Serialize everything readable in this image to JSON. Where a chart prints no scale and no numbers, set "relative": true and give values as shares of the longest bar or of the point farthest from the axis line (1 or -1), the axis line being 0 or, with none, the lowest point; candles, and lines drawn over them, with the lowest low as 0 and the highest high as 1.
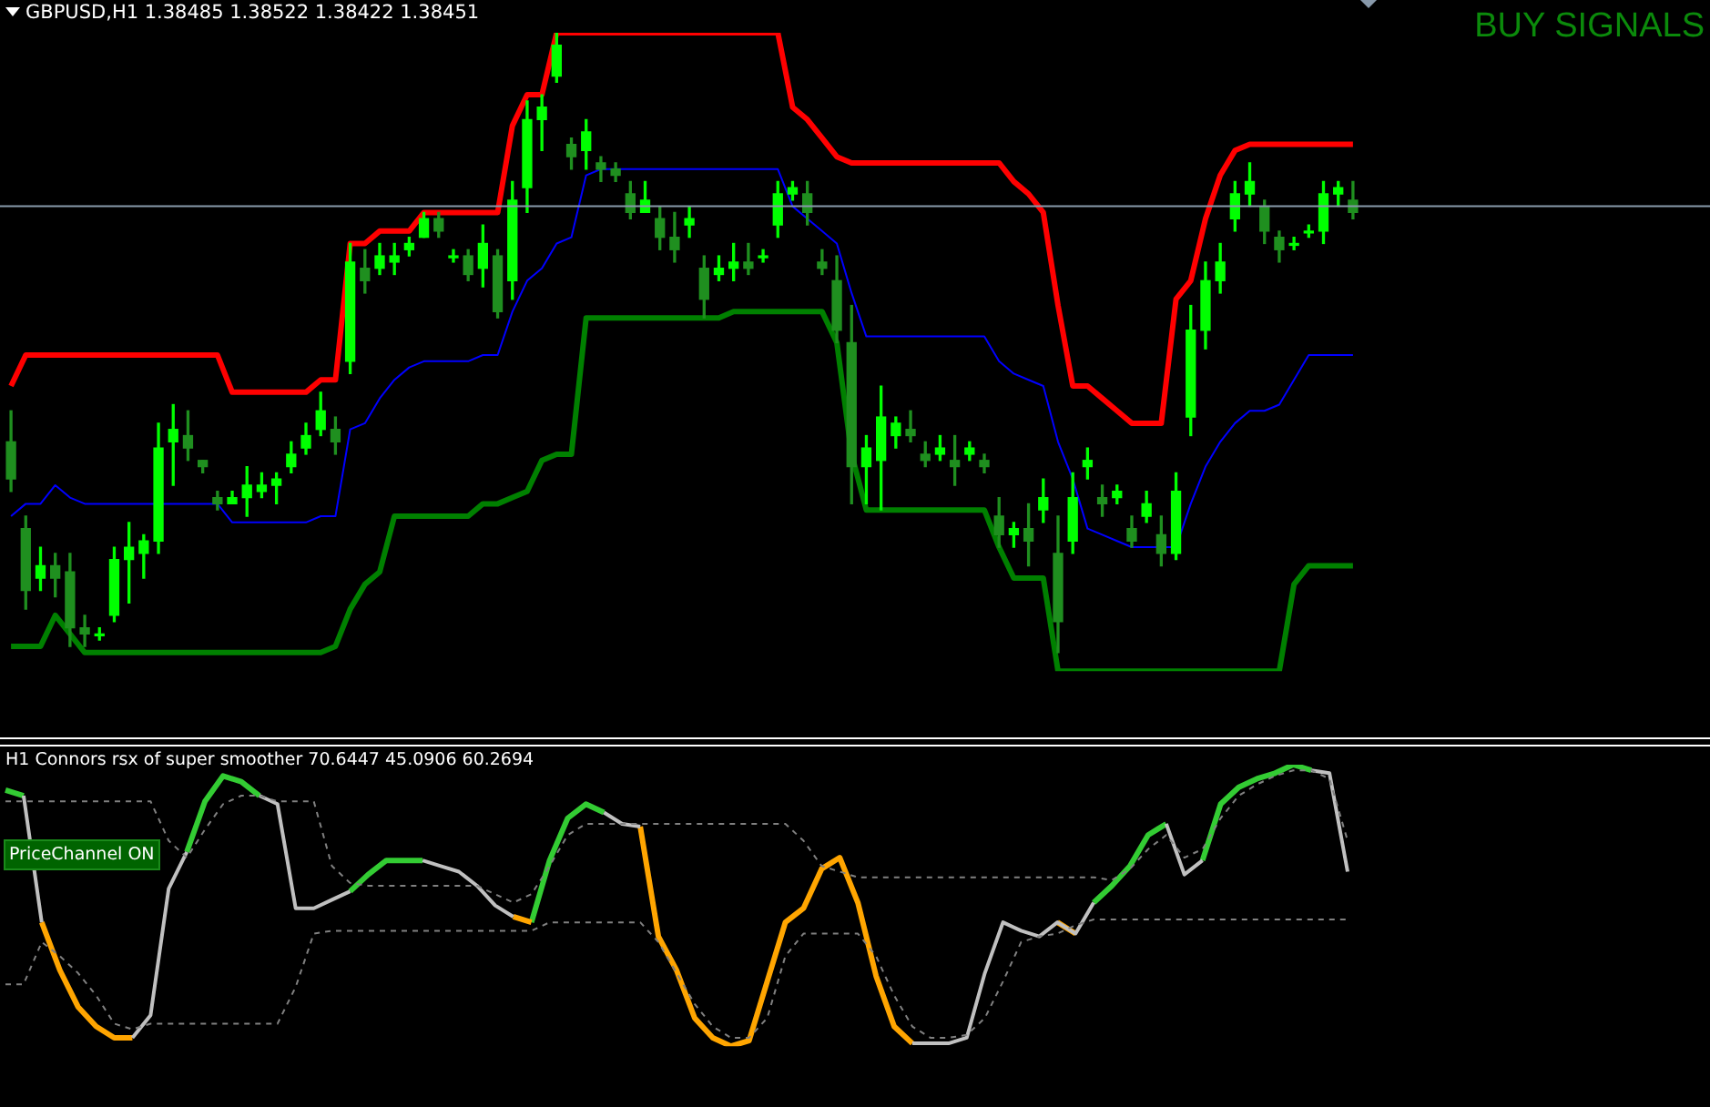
{
  "chart_data": [
    {
      "type": "candlestick",
      "title": "GBPUSD,H1 1.38485 1.38522 1.38422 1.38451",
      "annotations": [
        "BUY SIGNALS"
      ],
      "relative": true,
      "marker": "none",
      "colors": [
        "#1f8f1f",
        "#1f8f1f",
        "#00ff00",
        "#1f8f1f",
        "#1f8f1f",
        "#1f8f1f",
        "#00ff00",
        "#00ff00",
        "#00ff00",
        "#00ff00",
        "#00ff00",
        "#00ff00",
        "#1f8f1f",
        "#1f8f1f",
        "#1f8f1f",
        "#00ff00",
        "#00ff00",
        "#00ff00",
        "#00ff00",
        "#00ff00",
        "#00ff00",
        "#00ff00",
        "#1f8f1f",
        "#00ff00",
        "#1f8f1f",
        "#00ff00",
        "#00ff00",
        "#00ff00",
        "#00ff00",
        "#1f8f1f",
        "#00ff00",
        "#1f8f1f",
        "#00ff00",
        "#1f8f1f",
        "#00ff00",
        "#00ff00",
        "#00ff00",
        "#00ff00",
        "#1f8f1f",
        "#00ff00",
        "#1f8f1f",
        "#1f8f1f",
        "#1f8f1f",
        "#00ff00",
        "#1f8f1f",
        "#1f8f1f",
        "#00ff00",
        "#1f8f1f",
        "#00ff00",
        "#00ff00",
        "#1f8f1f",
        "#00ff00",
        "#00ff00",
        "#00ff00",
        "#1f8f1f",
        "#1f8f1f",
        "#1f8f1f",
        "#1f8f1f",
        "#00ff00",
        "#00ff00",
        "#00ff00",
        "#1f8f1f",
        "#1f8f1f",
        "#00ff00",
        "#1f8f1f",
        "#00ff00",
        "#1f8f1f",
        "#1f8f1f",
        "#00ff00",
        "#1f8f1f",
        "#00ff00",
        "#1f8f1f",
        "#00ff00",
        "#00ff00",
        "#1f8f1f",
        "#00ff00",
        "#1f8f1f",
        "#00ff00",
        "#1f8f1f",
        "#00ff00",
        "#00ff00",
        "#00ff00",
        "#00ff00",
        "#00ff00",
        "#00ff00",
        "#1f8f1f",
        "#1f8f1f",
        "#00ff00",
        "#00ff00",
        "#00ff00",
        "#00ff00",
        "#1f8f1f"
      ],
      "categories": [
        null,
        null,
        null,
        null,
        null,
        null,
        null,
        null,
        null,
        null,
        null,
        null,
        null,
        null,
        null,
        null,
        null,
        null,
        null,
        null,
        null,
        null,
        null,
        null,
        null,
        null,
        null,
        null,
        null,
        null,
        null,
        null,
        null,
        null,
        null,
        null,
        null,
        null,
        null,
        null,
        null,
        null,
        null,
        null,
        null,
        null,
        null,
        null,
        null,
        null,
        null,
        null,
        null,
        null,
        null,
        null,
        null,
        null,
        null,
        null,
        null,
        null,
        null,
        null,
        null,
        null,
        null,
        null,
        null,
        null,
        null,
        null,
        null,
        null,
        null,
        null,
        null,
        null,
        null,
        null,
        null,
        null,
        null,
        null,
        null,
        null,
        null,
        null,
        null,
        null,
        null,
        null
      ],
      "ohlc": [
        [
          0.34,
          0.39,
          0.26,
          0.28
        ],
        [
          0.2,
          0.22,
          0.07,
          0.1
        ],
        [
          0.12,
          0.17,
          0.1,
          0.14
        ],
        [
          0.14,
          0.16,
          0.09,
          0.12
        ],
        [
          0.13,
          0.16,
          0.01,
          0.04
        ],
        [
          0.04,
          0.06,
          0.01,
          0.03
        ],
        [
          0.03,
          0.04,
          0.02,
          0.03
        ],
        [
          0.06,
          0.17,
          0.05,
          0.15
        ],
        [
          0.15,
          0.21,
          0.08,
          0.17
        ],
        [
          0.16,
          0.19,
          0.12,
          0.18
        ],
        [
          0.18,
          0.37,
          0.16,
          0.33
        ],
        [
          0.34,
          0.4,
          0.27,
          0.36
        ],
        [
          0.35,
          0.39,
          0.31,
          0.33
        ],
        [
          0.31,
          0.31,
          0.29,
          0.3
        ],
        [
          0.25,
          0.26,
          0.23,
          0.24
        ],
        [
          0.24,
          0.26,
          0.24,
          0.25
        ],
        [
          0.25,
          0.3,
          0.22,
          0.27
        ],
        [
          0.26,
          0.29,
          0.25,
          0.27
        ],
        [
          0.27,
          0.29,
          0.24,
          0.28
        ],
        [
          0.3,
          0.34,
          0.29,
          0.32
        ],
        [
          0.33,
          0.37,
          0.32,
          0.35
        ],
        [
          0.36,
          0.42,
          0.35,
          0.39
        ],
        [
          0.36,
          0.38,
          0.32,
          0.34
        ],
        [
          0.47,
          0.66,
          0.45,
          0.63
        ],
        [
          0.62,
          0.65,
          0.58,
          0.6
        ],
        [
          0.62,
          0.66,
          0.61,
          0.64
        ],
        [
          0.63,
          0.66,
          0.61,
          0.64
        ],
        [
          0.65,
          0.67,
          0.64,
          0.66
        ],
        [
          0.67,
          0.71,
          0.67,
          0.7
        ],
        [
          0.7,
          0.71,
          0.67,
          0.68
        ],
        [
          0.64,
          0.65,
          0.63,
          0.64
        ],
        [
          0.64,
          0.65,
          0.6,
          0.61
        ],
        [
          0.62,
          0.69,
          0.59,
          0.66
        ],
        [
          0.64,
          0.65,
          0.54,
          0.55
        ],
        [
          0.6,
          0.76,
          0.57,
          0.73
        ],
        [
          0.75,
          0.89,
          0.71,
          0.86
        ],
        [
          0.86,
          0.9,
          0.81,
          0.88
        ],
        [
          0.93,
          1.0,
          0.92,
          0.98
        ],
        [
          0.82,
          0.83,
          0.78,
          0.8
        ],
        [
          0.81,
          0.86,
          0.78,
          0.84
        ],
        [
          0.79,
          0.8,
          0.76,
          0.78
        ],
        [
          0.78,
          0.79,
          0.76,
          0.77
        ],
        [
          0.74,
          0.76,
          0.7,
          0.71
        ],
        [
          0.71,
          0.76,
          0.71,
          0.73
        ],
        [
          0.7,
          0.72,
          0.65,
          0.67
        ],
        [
          0.67,
          0.71,
          0.63,
          0.65
        ],
        [
          0.69,
          0.72,
          0.67,
          0.7
        ],
        [
          0.62,
          0.64,
          0.54,
          0.57
        ],
        [
          0.61,
          0.64,
          0.6,
          0.62
        ],
        [
          0.62,
          0.66,
          0.6,
          0.63
        ],
        [
          0.63,
          0.66,
          0.61,
          0.62
        ],
        [
          0.64,
          0.65,
          0.63,
          0.64
        ],
        [
          0.69,
          0.76,
          0.67,
          0.74
        ],
        [
          0.74,
          0.76,
          0.73,
          0.75
        ],
        [
          0.74,
          0.76,
          0.69,
          0.71
        ],
        [
          0.63,
          0.65,
          0.61,
          0.62
        ],
        [
          0.6,
          0.64,
          0.5,
          0.52
        ],
        [
          0.5,
          0.56,
          0.24,
          0.3
        ],
        [
          0.3,
          0.35,
          0.24,
          0.33
        ],
        [
          0.31,
          0.43,
          0.23,
          0.38
        ],
        [
          0.35,
          0.38,
          0.33,
          0.37
        ],
        [
          0.36,
          0.39,
          0.34,
          0.35
        ],
        [
          0.32,
          0.34,
          0.3,
          0.31
        ],
        [
          0.32,
          0.35,
          0.31,
          0.33
        ],
        [
          0.31,
          0.35,
          0.27,
          0.3
        ],
        [
          0.32,
          0.34,
          0.31,
          0.33
        ],
        [
          0.31,
          0.32,
          0.29,
          0.3
        ],
        [
          0.22,
          0.25,
          0.17,
          0.19
        ],
        [
          0.19,
          0.21,
          0.17,
          0.2
        ],
        [
          0.2,
          0.24,
          0.14,
          0.18
        ],
        [
          0.23,
          0.28,
          0.21,
          0.25
        ],
        [
          0.16,
          0.22,
          0,
          0.05
        ],
        [
          0.18,
          0.29,
          0.16,
          0.25
        ],
        [
          0.3,
          0.33,
          0.28,
          0.31
        ],
        [
          0.25,
          0.27,
          0.22,
          0.24
        ],
        [
          0.25,
          0.27,
          0.24,
          0.26
        ],
        [
          0.2,
          0.22,
          0.17,
          0.18
        ],
        [
          0.22,
          0.26,
          0.21,
          0.24
        ],
        [
          0.19,
          0.22,
          0.14,
          0.16
        ],
        [
          0.16,
          0.29,
          0.15,
          0.26
        ],
        [
          0.38,
          0.56,
          0.35,
          0.52
        ],
        [
          0.52,
          0.63,
          0.49,
          0.6
        ],
        [
          0.6,
          0.66,
          0.58,
          0.63
        ],
        [
          0.7,
          0.76,
          0.68,
          0.74
        ],
        [
          0.74,
          0.79,
          0.72,
          0.76
        ],
        [
          0.72,
          0.73,
          0.66,
          0.68
        ],
        [
          0.67,
          0.68,
          0.63,
          0.65
        ],
        [
          0.66,
          0.67,
          0.65,
          0.66
        ],
        [
          0.68,
          0.69,
          0.67,
          0.68
        ],
        [
          0.68,
          0.76,
          0.66,
          0.74
        ],
        [
          0.74,
          0.76,
          0.72,
          0.75
        ],
        [
          0.73,
          0.76,
          0.7,
          0.71
        ]
      ],
      "series": [
        {
          "type": "line",
          "color": "#ff0000",
          "values": [
            0.43,
            0.48,
            0.48,
            0.48,
            0.48,
            0.48,
            0.48,
            0.48,
            0.48,
            0.48,
            0.48,
            0.48,
            0.48,
            0.48,
            0.48,
            0.42,
            0.42,
            0.42,
            0.42,
            0.42,
            0.42,
            0.44,
            0.44,
            0.66,
            0.66,
            0.68,
            0.68,
            0.68,
            0.71,
            0.71,
            0.71,
            0.71,
            0.71,
            0.71,
            0.85,
            0.9,
            0.9,
            1,
            1,
            1,
            1,
            1,
            1,
            1,
            1,
            1,
            1,
            1,
            1,
            1,
            1,
            1,
            1,
            0.88,
            0.86,
            0.83,
            0.8,
            0.79,
            0.79,
            0.79,
            0.79,
            0.79,
            0.79,
            0.79,
            0.79,
            0.79,
            0.79,
            0.79,
            0.76,
            0.74,
            0.71,
            0.56,
            0.43,
            0.43,
            0.41,
            0.39,
            0.37,
            0.37,
            0.37,
            0.57,
            0.6,
            0.7,
            0.77,
            0.81,
            0.82,
            0.82,
            0.82,
            0.82,
            0.82,
            0.82,
            0.82,
            0.82
          ]
        },
        {
          "type": "line",
          "color": "#0000ff",
          "values": [
            0.22,
            0.24,
            0.24,
            0.27,
            0.25,
            0.24,
            0.24,
            0.24,
            0.24,
            0.24,
            0.24,
            0.24,
            0.24,
            0.24,
            0.24,
            0.21,
            0.21,
            0.21,
            0.21,
            0.21,
            0.21,
            0.22,
            0.22,
            0.36,
            0.37,
            0.41,
            0.44,
            0.46,
            0.47,
            0.47,
            0.47,
            0.47,
            0.48,
            0.48,
            0.55,
            0.6,
            0.62,
            0.66,
            0.67,
            0.77,
            0.78,
            0.78,
            0.78,
            0.78,
            0.78,
            0.78,
            0.78,
            0.78,
            0.78,
            0.78,
            0.78,
            0.78,
            0.78,
            0.72,
            0.7,
            0.68,
            0.66,
            0.58,
            0.51,
            0.51,
            0.51,
            0.51,
            0.51,
            0.51,
            0.51,
            0.51,
            0.51,
            0.47,
            0.45,
            0.44,
            0.43,
            0.34,
            0.28,
            0.2,
            0.19,
            0.18,
            0.17,
            0.17,
            0.17,
            0.17,
            0.24,
            0.3,
            0.34,
            0.37,
            0.39,
            0.39,
            0.4,
            0.44,
            0.48,
            0.48,
            0.48,
            0.48
          ]
        },
        {
          "type": "line",
          "color": "#008000",
          "values": [
            0.01,
            0.01,
            0.01,
            0.06,
            0.03,
            0,
            0,
            0,
            0,
            0,
            0,
            0,
            0,
            0,
            0,
            0,
            0,
            0,
            0,
            0,
            0,
            0,
            0.01,
            0.07,
            0.11,
            0.13,
            0.22,
            0.22,
            0.22,
            0.22,
            0.22,
            0.22,
            0.24,
            0.24,
            0.25,
            0.26,
            0.31,
            0.32,
            0.32,
            0.54,
            0.54,
            0.54,
            0.54,
            0.54,
            0.54,
            0.54,
            0.54,
            0.54,
            0.54,
            0.55,
            0.55,
            0.55,
            0.55,
            0.55,
            0.55,
            0.55,
            0.5,
            0.32,
            0.23,
            0.23,
            0.23,
            0.23,
            0.23,
            0.23,
            0.23,
            0.23,
            0.23,
            0.17,
            0.12,
            0.12,
            0.12,
            -0.03,
            -0.03,
            -0.03,
            -0.03,
            -0.03,
            -0.03,
            -0.03,
            -0.03,
            -0.03,
            -0.03,
            -0.03,
            -0.03,
            -0.03,
            -0.03,
            -0.03,
            -0.03,
            0.11,
            0.14,
            0.14,
            0.14,
            0.14
          ]
        }
      ],
      "ref_lines": [
        {
          "axis": "y",
          "value": 0.72,
          "color": "#8899aa"
        }
      ]
    },
    {
      "type": "line",
      "title": "H1 Connors rsx of super smoother 70.6447 45.0906 60.2694",
      "annotations": [
        "PriceChannel ON"
      ],
      "relative": true,
      "marker": "none",
      "categories": [
        null,
        null,
        null,
        null,
        null,
        null,
        null,
        null,
        null,
        null,
        null,
        null,
        null,
        null,
        null,
        null,
        null,
        null,
        null,
        null,
        null,
        null,
        null,
        null,
        null,
        null,
        null,
        null,
        null,
        null,
        null,
        null,
        null,
        null,
        null,
        null,
        null,
        null,
        null,
        null,
        null,
        null,
        null,
        null,
        null,
        null,
        null,
        null,
        null,
        null,
        null,
        null,
        null,
        null,
        null,
        null,
        null,
        null,
        null,
        null,
        null,
        null,
        null,
        null,
        null,
        null,
        null,
        null,
        null,
        null,
        null,
        null,
        null,
        null,
        null
      ],
      "series": [
        {
          "color": "#808080",
          "line_style": "dashed",
          "values": [
            0.87,
            0.87,
            0.87,
            0.87,
            0.87,
            0.87,
            0.87,
            0.87,
            0.87,
            0.73,
            0.67,
            0.77,
            0.86,
            0.89,
            0.89,
            0.87,
            0.87,
            0.87,
            0.64,
            0.58,
            0.57,
            0.57,
            0.57,
            0.57,
            0.57,
            0.57,
            0.57,
            0.54,
            0.51,
            0.54,
            0.64,
            0.75,
            0.79,
            0.79,
            0.79,
            0.79,
            0.79,
            0.79,
            0.79,
            0.79,
            0.79,
            0.79,
            0.79,
            0.79,
            0.73,
            0.64,
            0.62,
            0.6,
            0.6,
            0.6,
            0.6,
            0.6,
            0.6,
            0.6,
            0.6,
            0.6,
            0.6,
            0.6,
            0.6,
            0.6,
            0.6,
            0.59,
            0.63,
            0.7,
            0.75,
            0.67,
            0.7,
            0.81,
            0.89,
            0.93,
            0.96,
            0.98,
            0.98,
            0.95,
            0.73
          ]
        },
        {
          "color": "#808080",
          "line_style": "dashed",
          "values": [
            0.22,
            0.22,
            0.37,
            0.32,
            0.26,
            0.18,
            0.08,
            0.06,
            0.08,
            0.08,
            0.08,
            0.08,
            0.08,
            0.08,
            0.08,
            0.08,
            0.21,
            0.4,
            0.41,
            0.41,
            0.41,
            0.41,
            0.41,
            0.41,
            0.41,
            0.41,
            0.41,
            0.41,
            0.41,
            0.41,
            0.44,
            0.44,
            0.44,
            0.44,
            0.44,
            0.44,
            0.37,
            0.26,
            0.15,
            0.07,
            0.03,
            0.03,
            0.1,
            0.32,
            0.4,
            0.4,
            0.4,
            0.4,
            0.32,
            0.18,
            0.07,
            0.03,
            0.03,
            0.04,
            0.1,
            0.23,
            0.37,
            0.39,
            0.4,
            0.43,
            0.45,
            0.45,
            0.45,
            0.45,
            0.45,
            0.45,
            0.45,
            0.45,
            0.45,
            0.45,
            0.45,
            0.45,
            0.45,
            0.45,
            0.45
          ]
        },
        {
          "color": "#c0c0c0",
          "values": [
            null,
            0.89,
            0.44,
            null,
            null,
            null,
            null,
            0.03,
            0.11,
            0.56,
            0.69,
            null,
            null,
            null,
            0.89,
            0.86,
            0.49,
            0.49,
            0.52,
            0.55,
            null,
            null,
            null,
            0.66,
            0.64,
            0.62,
            0.57,
            0.5,
            0.46,
            null,
            null,
            null,
            null,
            0.83,
            0.79,
            0.78,
            null,
            null,
            null,
            null,
            null,
            null,
            null,
            null,
            null,
            null,
            null,
            null,
            null,
            null,
            0.01,
            0.01,
            0.01,
            0.03,
            0.26,
            0.44,
            0.41,
            0.39,
            0.44,
            0.4,
            0.51,
            null,
            null,
            null,
            0.79,
            0.61,
            0.66,
            null,
            null,
            null,
            null,
            null,
            0.98,
            0.97,
            0.62
          ]
        },
        {
          "color": "#ffa500",
          "values": [
            null,
            null,
            0.44,
            0.27,
            0.14,
            0.07,
            0.03,
            0.03,
            null,
            null,
            null,
            null,
            null,
            null,
            null,
            null,
            null,
            null,
            null,
            null,
            null,
            null,
            null,
            null,
            null,
            null,
            null,
            null,
            0.46,
            0.44,
            null,
            null,
            null,
            null,
            null,
            0.78,
            0.39,
            0.27,
            0.1,
            0.03,
            0,
            0.02,
            0.23,
            0.44,
            0.49,
            0.63,
            0.67,
            0.51,
            0.25,
            0.07,
            0.01,
            null,
            null,
            null,
            null,
            null,
            null,
            null,
            0.44,
            0.4,
            null,
            null,
            null,
            null,
            null,
            null,
            null,
            null,
            null,
            null,
            null,
            null,
            null,
            null,
            null
          ]
        },
        {
          "color": "#33cc33",
          "values": [
            0.91,
            0.89,
            null,
            null,
            null,
            null,
            null,
            null,
            null,
            null,
            0.69,
            0.87,
            0.96,
            0.94,
            0.89,
            null,
            null,
            null,
            null,
            0.55,
            0.61,
            0.66,
            0.66,
            0.66,
            null,
            null,
            null,
            null,
            null,
            0.44,
            0.66,
            0.81,
            0.86,
            0.83,
            null,
            null,
            null,
            null,
            null,
            null,
            null,
            null,
            null,
            null,
            null,
            null,
            null,
            null,
            null,
            null,
            null,
            null,
            null,
            null,
            null,
            null,
            null,
            null,
            null,
            null,
            0.51,
            0.57,
            0.64,
            0.75,
            0.79,
            null,
            0.66,
            0.86,
            0.92,
            0.95,
            0.97,
            1,
            0.98,
            null,
            null
          ]
        }
      ]
    }
  ]
}
